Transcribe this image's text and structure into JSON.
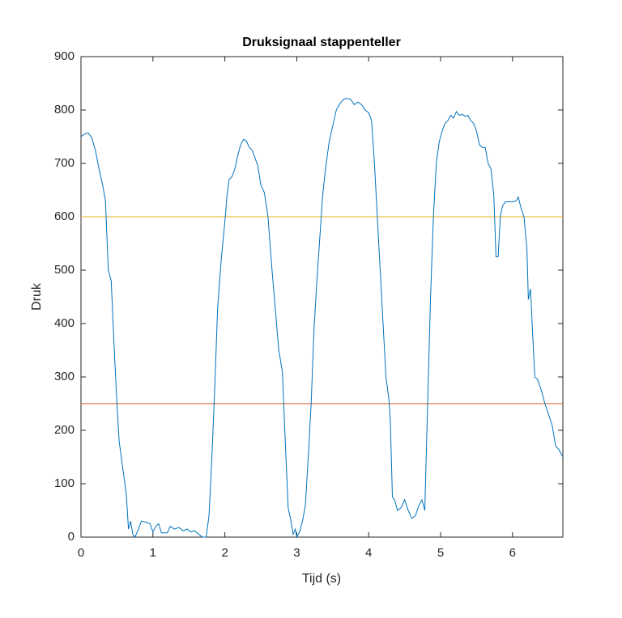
{
  "chart_data": {
    "type": "line",
    "title": "Druksignaal stappenteller",
    "xlabel": "Tijd (s)",
    "ylabel": "Druk",
    "x": [
      0,
      0.05,
      0.1,
      0.15,
      0.2,
      0.25,
      0.3,
      0.34,
      0.38,
      0.42,
      0.47,
      0.5,
      0.53,
      0.56,
      0.6,
      0.63,
      0.66,
      0.69,
      0.72,
      0.75,
      0.8,
      0.84,
      0.9,
      0.96,
      1.0,
      1.04,
      1.08,
      1.12,
      1.2,
      1.24,
      1.3,
      1.36,
      1.42,
      1.48,
      1.52,
      1.58,
      1.64,
      1.69,
      1.74,
      1.78,
      1.82,
      1.86,
      1.9,
      1.95,
      2.0,
      2.03,
      2.06,
      2.1,
      2.14,
      2.18,
      2.22,
      2.26,
      2.3,
      2.34,
      2.38,
      2.42,
      2.46,
      2.5,
      2.55,
      2.6,
      2.65,
      2.7,
      2.75,
      2.8,
      2.84,
      2.88,
      2.92,
      2.95,
      2.98,
      3.0,
      3.04,
      3.08,
      3.12,
      3.16,
      3.2,
      3.24,
      3.28,
      3.32,
      3.36,
      3.4,
      3.45,
      3.5,
      3.55,
      3.6,
      3.65,
      3.7,
      3.75,
      3.8,
      3.85,
      3.9,
      3.95,
      4.0,
      4.04,
      4.08,
      4.12,
      4.16,
      4.2,
      4.24,
      4.28,
      4.3,
      4.33,
      4.36,
      4.4,
      4.45,
      4.5,
      4.55,
      4.6,
      4.65,
      4.7,
      4.74,
      4.78,
      4.82,
      4.86,
      4.9,
      4.94,
      4.98,
      5.02,
      5.06,
      5.1,
      5.14,
      5.18,
      5.22,
      5.26,
      5.3,
      5.34,
      5.38,
      5.42,
      5.46,
      5.5,
      5.54,
      5.58,
      5.62,
      5.66,
      5.7,
      5.74,
      5.77,
      5.8,
      5.83,
      5.86,
      5.9,
      5.95,
      6.0,
      6.05,
      6.08,
      6.12,
      6.16,
      6.2,
      6.22,
      6.25,
      6.28,
      6.31,
      6.35,
      6.4,
      6.45,
      6.5,
      6.55,
      6.6,
      6.64,
      6.7
    ],
    "series": [
      {
        "color": "#0072BD",
        "values": [
          750,
          755,
          757,
          748,
          725,
          690,
          660,
          630,
          500,
          480,
          330,
          250,
          180,
          150,
          110,
          80,
          15,
          30,
          5,
          0,
          15,
          30,
          28,
          25,
          10,
          20,
          25,
          8,
          8,
          20,
          15,
          18,
          12,
          15,
          10,
          12,
          5,
          0,
          0,
          40,
          150,
          280,
          430,
          520,
          590,
          640,
          670,
          675,
          690,
          715,
          735,
          745,
          742,
          730,
          725,
          710,
          695,
          660,
          645,
          600,
          510,
          430,
          350,
          310,
          180,
          55,
          30,
          5,
          15,
          0,
          10,
          30,
          60,
          150,
          250,
          390,
          480,
          560,
          640,
          690,
          740,
          770,
          800,
          812,
          820,
          822,
          820,
          810,
          815,
          810,
          800,
          795,
          780,
          700,
          600,
          500,
          400,
          300,
          260,
          220,
          75,
          70,
          50,
          55,
          70,
          50,
          35,
          40,
          60,
          70,
          50,
          250,
          450,
          600,
          700,
          740,
          760,
          775,
          780,
          790,
          785,
          797,
          790,
          792,
          788,
          790,
          780,
          775,
          760,
          735,
          730,
          730,
          700,
          690,
          640,
          525,
          525,
          600,
          620,
          628,
          628,
          628,
          630,
          637,
          615,
          600,
          540,
          445,
          465,
          380,
          300,
          295,
          275,
          250,
          230,
          210,
          170,
          165,
          150
        ]
      }
    ],
    "hlines": [
      {
        "value": 600,
        "color": "#EDB120"
      },
      {
        "value": 250,
        "color": "#D95319"
      }
    ],
    "xlim": [
      0,
      6.7
    ],
    "ylim": [
      0,
      900
    ],
    "xticks": [
      0,
      1,
      2,
      3,
      4,
      5,
      6
    ],
    "yticks": [
      0,
      100,
      200,
      300,
      400,
      500,
      600,
      700,
      800,
      900
    ]
  }
}
